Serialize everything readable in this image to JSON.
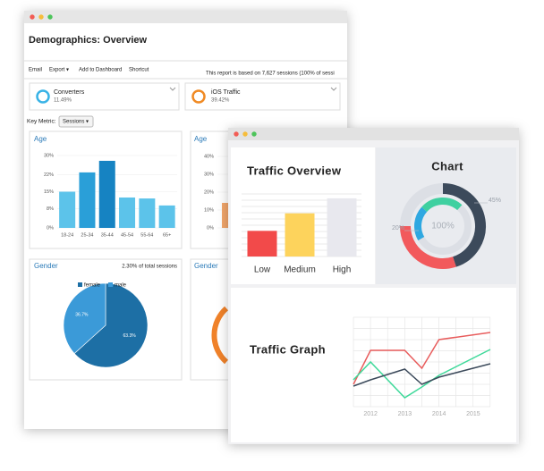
{
  "back_window": {
    "title": "Demographics: Overview",
    "toolbar": [
      "Email",
      "Export ▾",
      "Add to Dashboard",
      "Shortcut"
    ],
    "report_note": "This report is based on 7,627 sessions (100% of sessi",
    "segments": [
      {
        "name": "Converters",
        "value": "11.49%",
        "color": "#39b3e6"
      },
      {
        "name": "iOS Traffic",
        "value": "39.42%",
        "color": "#f08a24"
      }
    ],
    "key_metric_label": "Key Metric:",
    "key_metric": "Sessions ▾",
    "age_chart": {
      "type": "bar",
      "title": "Age",
      "categories": [
        "18-24",
        "25-34",
        "35-44",
        "45-54",
        "55-64",
        "65+"
      ],
      "values": [
        15,
        23,
        27.8,
        12.6,
        12.2,
        9.3
      ],
      "colors": [
        "#5cc3ea",
        "#2a9fd8",
        "#1683c2",
        "#5cc3ea",
        "#5cc3ea",
        "#5cc3ea"
      ],
      "ylim": [
        0,
        30
      ],
      "yticks": [
        {
          "value": 0,
          "label": "0%"
        },
        {
          "value": 8,
          "label": "8%"
        },
        {
          "value": 15,
          "label": "15%"
        },
        {
          "value": 22,
          "label": "22%"
        },
        {
          "value": 30,
          "label": "30%"
        }
      ]
    },
    "age_chart_2": {
      "type": "bar",
      "title": "Age",
      "values": [
        14
      ],
      "colors": [
        "#f2a66b"
      ],
      "ylim": [
        0,
        40
      ],
      "yticks": [
        {
          "value": 0,
          "label": "0%"
        },
        {
          "value": 10,
          "label": "10%"
        },
        {
          "value": 20,
          "label": "20%"
        },
        {
          "value": 30,
          "label": "30%"
        },
        {
          "value": 40,
          "label": "40%"
        }
      ]
    },
    "gender_chart": {
      "type": "pie",
      "title": "Gender",
      "note": "2.30% of total sessions",
      "categories": [
        "female",
        "male"
      ],
      "values": [
        63.3,
        36.7
      ],
      "value_labels": [
        "63.3%",
        "36.7%"
      ],
      "colors": [
        "#1d6fa5",
        "#3b9ad8"
      ]
    },
    "gender_chart_2": {
      "title": "Gender"
    }
  },
  "front_window": {
    "traffic_overview": {
      "type": "bar",
      "title": "Traffic Overview",
      "categories": [
        "Low",
        "Medium",
        "High"
      ],
      "values": [
        41,
        69,
        93
      ],
      "colors": [
        "#f24a4a",
        "#fdd35c",
        "#e8e8ee"
      ],
      "ylim": [
        0,
        100
      ]
    },
    "donut": {
      "type": "donut",
      "title": "Chart",
      "center_label": "100%",
      "rings": [
        {
          "values": [
            45,
            30
          ],
          "colors": [
            "#3c4a5b",
            "#f2595c"
          ],
          "value_labels": [
            "45%",
            null
          ]
        },
        {
          "values": [
            20,
            25
          ],
          "colors": [
            "#2fa8e1",
            "#3fd0a0"
          ],
          "value_labels": [
            "20%",
            null
          ]
        }
      ]
    },
    "traffic_graph": {
      "type": "line",
      "title": "Traffic Graph",
      "x": [
        2011.5,
        2012,
        2013,
        2013.5,
        2014,
        2015.5
      ],
      "xlim": [
        2011.5,
        2015.5
      ],
      "xticks": [
        2012,
        2013,
        2014,
        2015
      ],
      "ylim": [
        0,
        100
      ],
      "series": [
        {
          "color": "#e85d5d",
          "values": [
            25,
            63,
            63,
            43,
            75,
            83
          ]
        },
        {
          "color": "#3fd99a",
          "values": [
            30,
            50,
            10,
            22,
            35,
            64
          ]
        },
        {
          "color": "#3c4a5b",
          "values": [
            23,
            30,
            42,
            25,
            33,
            48
          ]
        }
      ]
    }
  }
}
